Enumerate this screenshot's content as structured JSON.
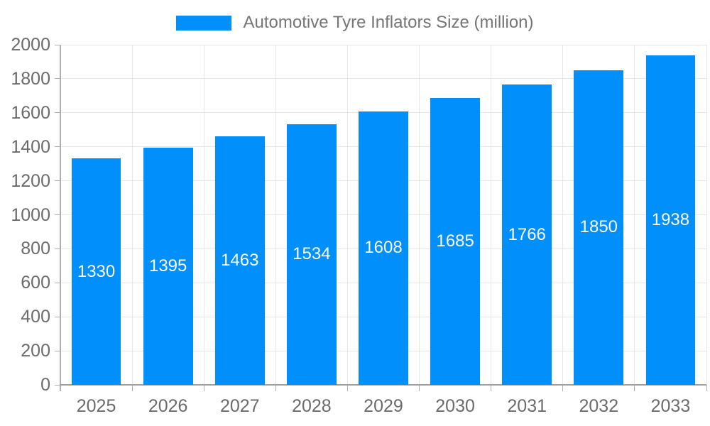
{
  "legend": {
    "label": "Automotive Tyre Inflators Size (million)"
  },
  "chart_data": {
    "type": "bar",
    "title": "Automotive Tyre Inflators Size (million)",
    "categories": [
      "2025",
      "2026",
      "2027",
      "2028",
      "2029",
      "2030",
      "2031",
      "2032",
      "2033"
    ],
    "series": [
      {
        "name": "Automotive Tyre Inflators Size (million)",
        "values": [
          1330,
          1395,
          1463,
          1534,
          1608,
          1685,
          1766,
          1850,
          1938
        ]
      }
    ],
    "xlabel": "",
    "ylabel": "",
    "ylim": [
      0,
      2000
    ],
    "ytick_step": 200,
    "grid": true,
    "legend_position": "top",
    "bar_label_position": "center"
  },
  "colors": {
    "bar": "#008FFB",
    "bar_label": "#ffffff",
    "gridline": "#e7e7e7",
    "axis_line": "#9e9e9e",
    "tick": "#b0b0b0",
    "axis_text": "#6b6b6b",
    "legend_text": "#757575"
  }
}
